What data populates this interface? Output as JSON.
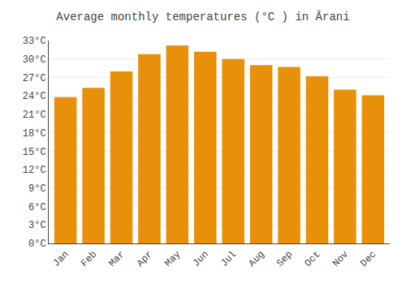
{
  "chart_data": {
    "type": "bar",
    "title": "Average monthly temperatures (°C ) in Ārani",
    "categories": [
      "Jan",
      "Feb",
      "Mar",
      "Apr",
      "May",
      "Jun",
      "Jul",
      "Aug",
      "Sep",
      "Oct",
      "Nov",
      "Dec"
    ],
    "values": [
      23.8,
      25.3,
      28.0,
      30.8,
      32.2,
      31.2,
      30.0,
      29.0,
      28.7,
      27.2,
      25.0,
      24.1
    ],
    "color": "#E8900A",
    "ylim": [
      0,
      33
    ],
    "yticks": [
      {
        "value": 0,
        "label": "0°C"
      },
      {
        "value": 3,
        "label": "3°C"
      },
      {
        "value": 6,
        "label": "6°C"
      },
      {
        "value": 9,
        "label": "9°C"
      },
      {
        "value": 12,
        "label": "12°C"
      },
      {
        "value": 15,
        "label": "15°C"
      },
      {
        "value": 18,
        "label": "18°C"
      },
      {
        "value": 21,
        "label": "21°C"
      },
      {
        "value": 24,
        "label": "24°C"
      },
      {
        "value": 27,
        "label": "27°C"
      },
      {
        "value": 30,
        "label": "30°C"
      },
      {
        "value": 33,
        "label": "33°C"
      }
    ],
    "grid": true
  }
}
